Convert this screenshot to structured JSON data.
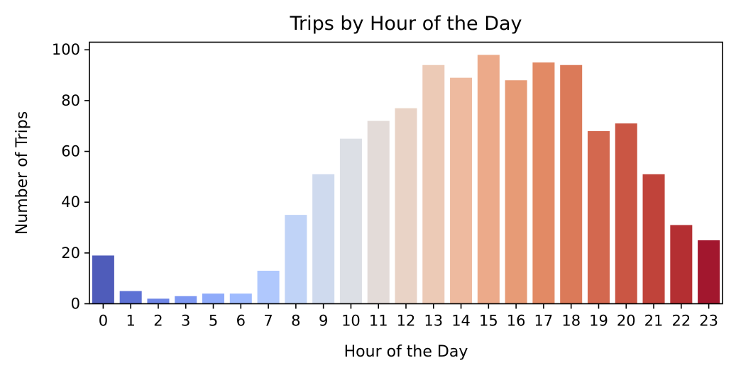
{
  "chart_data": {
    "type": "bar",
    "title": "Trips by Hour of the Day",
    "xlabel": "Hour of the Day",
    "ylabel": "Number of Trips",
    "ylim": [
      0,
      103
    ],
    "yticks": [
      "0",
      "20",
      "40",
      "60",
      "80",
      "100"
    ],
    "grid": false,
    "legend": "none",
    "colormap": "coolwarm",
    "categories": [
      "0",
      "1",
      "2",
      "3",
      "5",
      "6",
      "7",
      "8",
      "9",
      "10",
      "11",
      "12",
      "13",
      "14",
      "15",
      "16",
      "17",
      "18",
      "19",
      "20",
      "21",
      "22",
      "23"
    ],
    "values": [
      19,
      5,
      2,
      3,
      4,
      4,
      13,
      35,
      51,
      65,
      72,
      77,
      94,
      89,
      98,
      88,
      95,
      94,
      68,
      71,
      51,
      31,
      25
    ],
    "colors": [
      "#4f5cba",
      "#5d71d4",
      "#6e85e6",
      "#7e98f2",
      "#8fabfa",
      "#9fbbfe",
      "#b0c8fd",
      "#c0d3f7",
      "#cfdaee",
      "#dcdfe5",
      "#e3dbd8",
      "#e9d3c6",
      "#eccab6",
      "#eeba9f",
      "#ecaa8a",
      "#e79b76",
      "#e28a65",
      "#db7a59",
      "#d3684f",
      "#ca5644",
      "#c0433a",
      "#b42f32",
      "#a2172e"
    ]
  }
}
